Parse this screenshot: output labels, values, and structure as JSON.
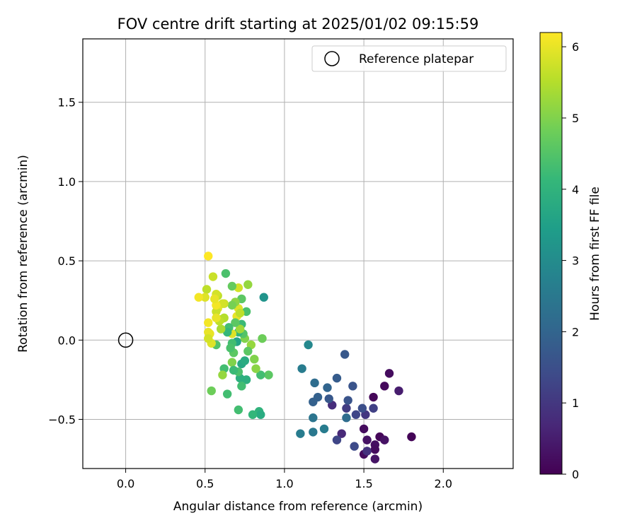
{
  "chart_data": {
    "type": "scatter",
    "title": "FOV centre drift starting at 2025/01/02 09:15:59",
    "xlabel": "Angular distance from reference (arcmin)",
    "ylabel": "Rotation from reference (arcmin)",
    "xlim": [
      -0.27,
      2.44
    ],
    "ylim": [
      -0.81,
      1.9
    ],
    "xticks": [
      0.0,
      0.5,
      1.0,
      1.5,
      2.0
    ],
    "xtick_labels": [
      "0.0",
      "0.5",
      "1.0",
      "1.5",
      "2.0"
    ],
    "yticks": [
      -0.5,
      0.0,
      0.5,
      1.0,
      1.5
    ],
    "ytick_labels": [
      "−0.5",
      "0.0",
      "0.5",
      "1.0",
      "1.5"
    ],
    "grid": true,
    "legend": {
      "location": "top-right",
      "entries": [
        "Reference platepar"
      ]
    },
    "reference_point": {
      "x": 0.0,
      "y": 0.0,
      "label": "Reference platepar"
    },
    "colorbar": {
      "label": "Hours from first FF file",
      "range": [
        0,
        6.2
      ],
      "ticks": [
        0,
        1,
        2,
        3,
        4,
        5,
        6
      ],
      "tick_labels": [
        "0",
        "1",
        "2",
        "3",
        "4",
        "5",
        "6"
      ],
      "colormap": "viridis"
    },
    "points": [
      {
        "x": 1.8,
        "y": -0.61,
        "c": 0.05
      },
      {
        "x": 1.66,
        "y": -0.21,
        "c": 0.2
      },
      {
        "x": 1.72,
        "y": -0.32,
        "c": 0.5
      },
      {
        "x": 1.63,
        "y": -0.29,
        "c": 0.15
      },
      {
        "x": 1.56,
        "y": -0.36,
        "c": 0.1
      },
      {
        "x": 1.6,
        "y": -0.61,
        "c": 0.1
      },
      {
        "x": 1.63,
        "y": -0.63,
        "c": 0.3
      },
      {
        "x": 1.57,
        "y": -0.66,
        "c": 0.25
      },
      {
        "x": 1.57,
        "y": -0.69,
        "c": 0.2
      },
      {
        "x": 1.57,
        "y": -0.75,
        "c": 0.35
      },
      {
        "x": 1.5,
        "y": -0.72,
        "c": 0.2
      },
      {
        "x": 1.52,
        "y": -0.7,
        "c": 0.9
      },
      {
        "x": 1.52,
        "y": -0.63,
        "c": 0.3
      },
      {
        "x": 1.5,
        "y": -0.56,
        "c": 0.2
      },
      {
        "x": 1.44,
        "y": -0.67,
        "c": 1.4
      },
      {
        "x": 1.45,
        "y": -0.47,
        "c": 1.3
      },
      {
        "x": 1.51,
        "y": -0.47,
        "c": 1.0
      },
      {
        "x": 1.49,
        "y": -0.43,
        "c": 1.5
      },
      {
        "x": 1.56,
        "y": -0.43,
        "c": 1.2
      },
      {
        "x": 1.39,
        "y": -0.43,
        "c": 1.1
      },
      {
        "x": 1.4,
        "y": -0.38,
        "c": 1.6
      },
      {
        "x": 1.43,
        "y": -0.29,
        "c": 1.6
      },
      {
        "x": 1.38,
        "y": -0.09,
        "c": 1.7
      },
      {
        "x": 1.33,
        "y": -0.24,
        "c": 1.8
      },
      {
        "x": 1.36,
        "y": -0.59,
        "c": 0.7
      },
      {
        "x": 1.33,
        "y": -0.63,
        "c": 1.3
      },
      {
        "x": 1.39,
        "y": -0.49,
        "c": 2.2
      },
      {
        "x": 1.3,
        "y": -0.41,
        "c": 0.8
      },
      {
        "x": 1.28,
        "y": -0.37,
        "c": 1.7
      },
      {
        "x": 1.27,
        "y": -0.3,
        "c": 2.0
      },
      {
        "x": 1.25,
        "y": -0.56,
        "c": 2.6
      },
      {
        "x": 1.21,
        "y": -0.36,
        "c": 1.9
      },
      {
        "x": 1.19,
        "y": -0.27,
        "c": 2.2
      },
      {
        "x": 1.18,
        "y": -0.39,
        "c": 1.9
      },
      {
        "x": 1.18,
        "y": -0.49,
        "c": 2.4
      },
      {
        "x": 1.18,
        "y": -0.58,
        "c": 2.5
      },
      {
        "x": 1.15,
        "y": -0.03,
        "c": 2.9
      },
      {
        "x": 1.11,
        "y": -0.18,
        "c": 2.6
      },
      {
        "x": 1.1,
        "y": -0.59,
        "c": 2.6
      },
      {
        "x": 0.87,
        "y": 0.27,
        "c": 3.2
      },
      {
        "x": 0.9,
        "y": -0.22,
        "c": 4.6
      },
      {
        "x": 0.86,
        "y": 0.01,
        "c": 4.8
      },
      {
        "x": 0.85,
        "y": -0.22,
        "c": 4.3
      },
      {
        "x": 0.84,
        "y": -0.45,
        "c": 4.0
      },
      {
        "x": 0.85,
        "y": -0.47,
        "c": 3.8
      },
      {
        "x": 0.82,
        "y": -0.18,
        "c": 5.1
      },
      {
        "x": 0.81,
        "y": -0.12,
        "c": 5.0
      },
      {
        "x": 0.8,
        "y": -0.47,
        "c": 4.1
      },
      {
        "x": 0.79,
        "y": -0.03,
        "c": 5.2
      },
      {
        "x": 0.77,
        "y": -0.07,
        "c": 4.6
      },
      {
        "x": 0.75,
        "y": 0.01,
        "c": 5.0
      },
      {
        "x": 0.74,
        "y": 0.04,
        "c": 4.5
      },
      {
        "x": 0.73,
        "y": -0.15,
        "c": 3.7
      },
      {
        "x": 0.75,
        "y": -0.13,
        "c": 3.8
      },
      {
        "x": 0.76,
        "y": -0.25,
        "c": 3.9
      },
      {
        "x": 0.72,
        "y": -0.24,
        "c": 3.9
      },
      {
        "x": 0.73,
        "y": -0.29,
        "c": 4.3
      },
      {
        "x": 0.71,
        "y": -0.2,
        "c": 4.4
      },
      {
        "x": 0.71,
        "y": -0.44,
        "c": 4.3
      },
      {
        "x": 0.7,
        "y": -0.01,
        "c": 3.6
      },
      {
        "x": 0.71,
        "y": 0.05,
        "c": 4.1
      },
      {
        "x": 0.73,
        "y": 0.1,
        "c": 4.2
      },
      {
        "x": 0.76,
        "y": 0.18,
        "c": 4.4
      },
      {
        "x": 0.73,
        "y": 0.26,
        "c": 4.6
      },
      {
        "x": 0.77,
        "y": 0.35,
        "c": 5.2
      },
      {
        "x": 0.71,
        "y": 0.33,
        "c": 5.8
      },
      {
        "x": 0.71,
        "y": 0.2,
        "c": 5.9
      },
      {
        "x": 0.7,
        "y": 0.15,
        "c": 6.0
      },
      {
        "x": 0.72,
        "y": 0.17,
        "c": 5.6
      },
      {
        "x": 0.72,
        "y": 0.07,
        "c": 5.3
      },
      {
        "x": 0.69,
        "y": 0.24,
        "c": 5.1
      },
      {
        "x": 0.69,
        "y": 0.11,
        "c": 4.6
      },
      {
        "x": 0.67,
        "y": 0.04,
        "c": 5.9
      },
      {
        "x": 0.67,
        "y": 0.34,
        "c": 4.7
      },
      {
        "x": 0.67,
        "y": 0.22,
        "c": 4.9
      },
      {
        "x": 0.67,
        "y": -0.02,
        "c": 4.3
      },
      {
        "x": 0.68,
        "y": -0.08,
        "c": 4.6
      },
      {
        "x": 0.67,
        "y": -0.14,
        "c": 5.0
      },
      {
        "x": 0.68,
        "y": -0.19,
        "c": 4.2
      },
      {
        "x": 0.66,
        "y": -0.05,
        "c": 4.4
      },
      {
        "x": 0.65,
        "y": 0.08,
        "c": 4.3
      },
      {
        "x": 0.64,
        "y": 0.05,
        "c": 4.1
      },
      {
        "x": 0.63,
        "y": 0.42,
        "c": 4.4
      },
      {
        "x": 0.64,
        "y": -0.34,
        "c": 4.3
      },
      {
        "x": 0.62,
        "y": -0.18,
        "c": 4.3
      },
      {
        "x": 0.61,
        "y": -0.22,
        "c": 5.2
      },
      {
        "x": 0.62,
        "y": 0.14,
        "c": 5.5
      },
      {
        "x": 0.62,
        "y": 0.23,
        "c": 5.7
      },
      {
        "x": 0.61,
        "y": 0.23,
        "c": 5.8
      },
      {
        "x": 0.6,
        "y": 0.13,
        "c": 5.5
      },
      {
        "x": 0.6,
        "y": 0.07,
        "c": 5.4
      },
      {
        "x": 0.59,
        "y": 0.12,
        "c": 5.6
      },
      {
        "x": 0.58,
        "y": 0.2,
        "c": 5.9
      },
      {
        "x": 0.58,
        "y": 0.28,
        "c": 5.6
      },
      {
        "x": 0.57,
        "y": 0.18,
        "c": 5.7
      },
      {
        "x": 0.57,
        "y": 0.14,
        "c": 6.0
      },
      {
        "x": 0.57,
        "y": 0.22,
        "c": 6.1
      },
      {
        "x": 0.57,
        "y": 0.29,
        "c": 5.8
      },
      {
        "x": 0.56,
        "y": 0.26,
        "c": 6.0
      },
      {
        "x": 0.57,
        "y": -0.03,
        "c": 4.5
      },
      {
        "x": 0.55,
        "y": 0.4,
        "c": 5.7
      },
      {
        "x": 0.54,
        "y": -0.32,
        "c": 4.8
      },
      {
        "x": 0.54,
        "y": -0.02,
        "c": 5.9
      },
      {
        "x": 0.53,
        "y": 0.04,
        "c": 6.0
      },
      {
        "x": 0.52,
        "y": 0.11,
        "c": 6.1
      },
      {
        "x": 0.52,
        "y": 0.05,
        "c": 6.0
      },
      {
        "x": 0.52,
        "y": 0.01,
        "c": 5.8
      },
      {
        "x": 0.51,
        "y": 0.32,
        "c": 5.6
      },
      {
        "x": 0.5,
        "y": 0.27,
        "c": 5.9
      },
      {
        "x": 0.52,
        "y": 0.53,
        "c": 6.2
      },
      {
        "x": 0.46,
        "y": 0.27,
        "c": 6.1
      }
    ]
  }
}
